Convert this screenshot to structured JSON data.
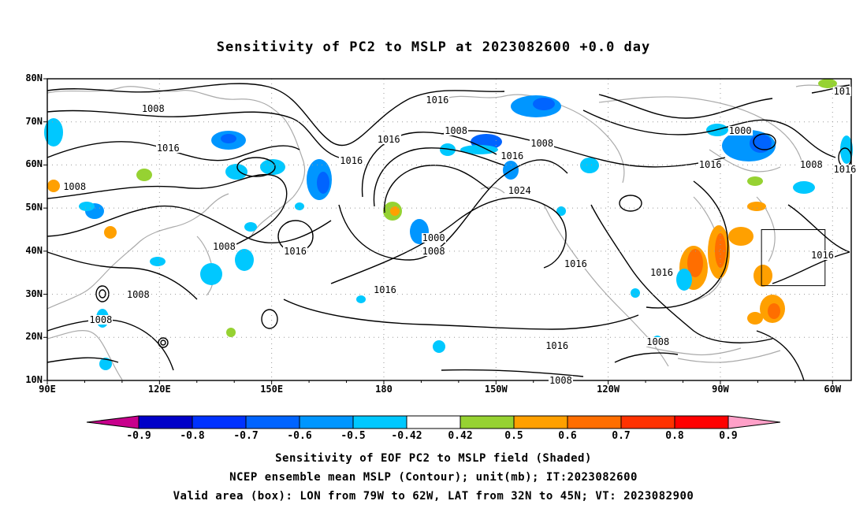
{
  "title": "Sensitivity of PC2 to MSLP at 2023082600 +0.0 day",
  "map": {
    "lat_labels": [
      "80N",
      "70N",
      "60N",
      "50N",
      "40N",
      "30N",
      "20N",
      "10N"
    ],
    "lon_labels": [
      "90E",
      "120E",
      "150E",
      "180",
      "150W",
      "120W",
      "90W",
      "60W"
    ],
    "lat_range": [
      10,
      80
    ],
    "lon_range": [
      90,
      305
    ],
    "grid": "dotted",
    "land_color": "#aaaaaa",
    "contour_color": "#000000",
    "contour_labels": [
      {
        "text": "1008",
        "lon": 118,
        "lat": 73
      },
      {
        "text": "1016",
        "lon": 122,
        "lat": 64
      },
      {
        "text": "1008",
        "lon": 97,
        "lat": 55
      },
      {
        "text": "1016",
        "lon": 171,
        "lat": 61
      },
      {
        "text": "1016",
        "lon": 194,
        "lat": 75
      },
      {
        "text": "1016",
        "lon": 181,
        "lat": 66
      },
      {
        "text": "1008",
        "lon": 199,
        "lat": 68
      },
      {
        "text": "1008",
        "lon": 222,
        "lat": 65
      },
      {
        "text": "1016",
        "lon": 214,
        "lat": 62
      },
      {
        "text": "1024",
        "lon": 216,
        "lat": 54
      },
      {
        "text": "1000",
        "lon": 193,
        "lat": 43
      },
      {
        "text": "1008",
        "lon": 193,
        "lat": 40
      },
      {
        "text": "1008",
        "lon": 137,
        "lat": 41
      },
      {
        "text": "1016",
        "lon": 156,
        "lat": 40
      },
      {
        "text": "1016",
        "lon": 180,
        "lat": 31
      },
      {
        "text": "1016",
        "lon": 231,
        "lat": 37
      },
      {
        "text": "1016",
        "lon": 226,
        "lat": 18
      },
      {
        "text": "1016",
        "lon": 254,
        "lat": 35
      },
      {
        "text": "1008",
        "lon": 253,
        "lat": 19
      },
      {
        "text": "1008",
        "lon": 227,
        "lat": 10
      },
      {
        "text": "1000",
        "lon": 275,
        "lat": 68
      },
      {
        "text": "1016",
        "lon": 267,
        "lat": 60
      },
      {
        "text": "1008",
        "lon": 294,
        "lat": 60
      },
      {
        "text": "1016",
        "lon": 303,
        "lat": 59
      },
      {
        "text": "1016",
        "lon": 297,
        "lat": 39
      },
      {
        "text": "1008",
        "lon": 114,
        "lat": 30
      },
      {
        "text": "1008",
        "lon": 104,
        "lat": 24
      },
      {
        "text": "101",
        "lon": 303,
        "lat": 77
      }
    ],
    "box": {
      "lon": [
        281,
        298
      ],
      "lat": [
        32,
        45
      ]
    },
    "shaded_colors": {
      "neg_05": "#00c8ff",
      "neg_06": "#0096ff",
      "neg_07": "#0064ff",
      "pos_05": "#96d232",
      "pos_06": "#ffa000",
      "pos_07": "#ff6e00"
    }
  },
  "colorbar": {
    "colors": [
      "#c8008c",
      "#0000c8",
      "#0032ff",
      "#0064ff",
      "#0096ff",
      "#00c8ff",
      "#ffffff",
      "#96d232",
      "#ffa000",
      "#ff6e00",
      "#ff3200",
      "#ff0000",
      "#ffa0c8"
    ],
    "labels": [
      "-0.9",
      "-0.8",
      "-0.7",
      "-0.6",
      "-0.5",
      "-0.42",
      "0.42",
      "0.5",
      "0.6",
      "0.7",
      "0.8",
      "0.9"
    ]
  },
  "footer": {
    "line1": "Sensitivity of EOF PC2 to MSLP field (Shaded)",
    "line2": "NCEP ensemble mean MSLP (Contour); unit(mb); IT:2023082600",
    "line3": "Valid area (box): LON from 79W to 62W, LAT from 32N to 45N; VT: 2023082900"
  }
}
